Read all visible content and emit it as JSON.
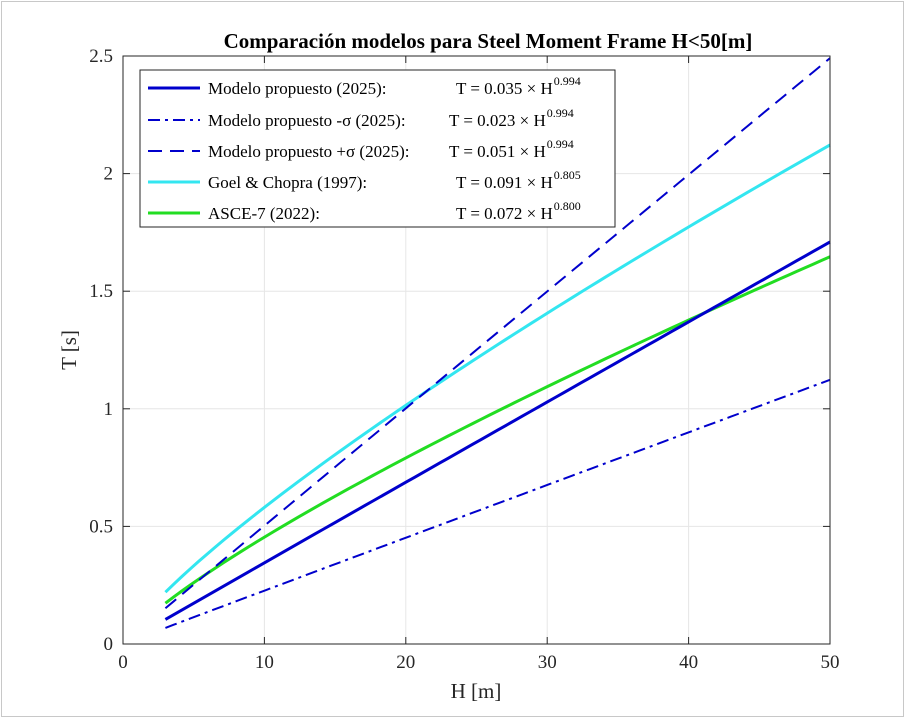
{
  "chart_data": {
    "type": "line",
    "title": "Comparación modelos para Steel Moment Frame H<50[m]",
    "xlabel": "H [m]",
    "ylabel": "T [s]",
    "xlim": [
      0,
      50
    ],
    "ylim": [
      0,
      2.5
    ],
    "x_ticks": [
      "0",
      "10",
      "20",
      "30",
      "40",
      "50"
    ],
    "y_ticks": [
      "0",
      "0.5",
      "1",
      "1.5",
      "2",
      "2.5"
    ],
    "grid": true,
    "legend_position": "top-left",
    "x_range_plotted": [
      3,
      50
    ],
    "series": [
      {
        "name": "Modelo propuesto (2025):",
        "equation": "T = 0.035 × H",
        "exponent_label": "0.994",
        "coefficient": 0.035,
        "exponent": 0.994,
        "color": "#0000cc",
        "style": "solid",
        "x": [
          3,
          10,
          20,
          30,
          40,
          50
        ],
        "values": [
          0.104,
          0.345,
          0.688,
          1.03,
          1.37,
          1.71
        ]
      },
      {
        "name": "Modelo propuesto -σ (2025):",
        "equation": "T = 0.023 × H",
        "exponent_label": "0.994",
        "coefficient": 0.023,
        "exponent": 0.994,
        "color": "#0000cc",
        "style": "dashdot",
        "x": [
          3,
          10,
          20,
          30,
          40,
          50
        ],
        "values": [
          0.069,
          0.227,
          0.452,
          0.677,
          0.901,
          1.125
        ]
      },
      {
        "name": "Modelo propuesto +σ (2025):",
        "equation": "T = 0.051 × H",
        "exponent_label": "0.994",
        "coefficient": 0.051,
        "exponent": 0.994,
        "color": "#0000cc",
        "style": "dashed",
        "x": [
          3,
          10,
          20,
          30,
          40,
          50
        ],
        "values": [
          0.152,
          0.503,
          1.003,
          1.5,
          1.997,
          2.493
        ]
      },
      {
        "name": "Goel & Chopra (1997):",
        "equation": "T = 0.091 × H",
        "exponent_label": "0.805",
        "coefficient": 0.091,
        "exponent": 0.805,
        "color": "#33e6f0",
        "style": "solid",
        "x": [
          3,
          10,
          20,
          30,
          40,
          50
        ],
        "values": [
          0.219,
          0.58,
          1.016,
          1.405,
          1.78,
          2.12
        ]
      },
      {
        "name": "ASCE-7 (2022):",
        "equation": "T = 0.072 × H",
        "exponent_label": "0.800",
        "coefficient": 0.072,
        "exponent": 0.8,
        "color": "#22dd22",
        "style": "solid",
        "x": [
          3,
          10,
          20,
          30,
          40,
          50
        ],
        "values": [
          0.173,
          0.454,
          0.79,
          1.09,
          1.375,
          1.655
        ]
      }
    ]
  }
}
